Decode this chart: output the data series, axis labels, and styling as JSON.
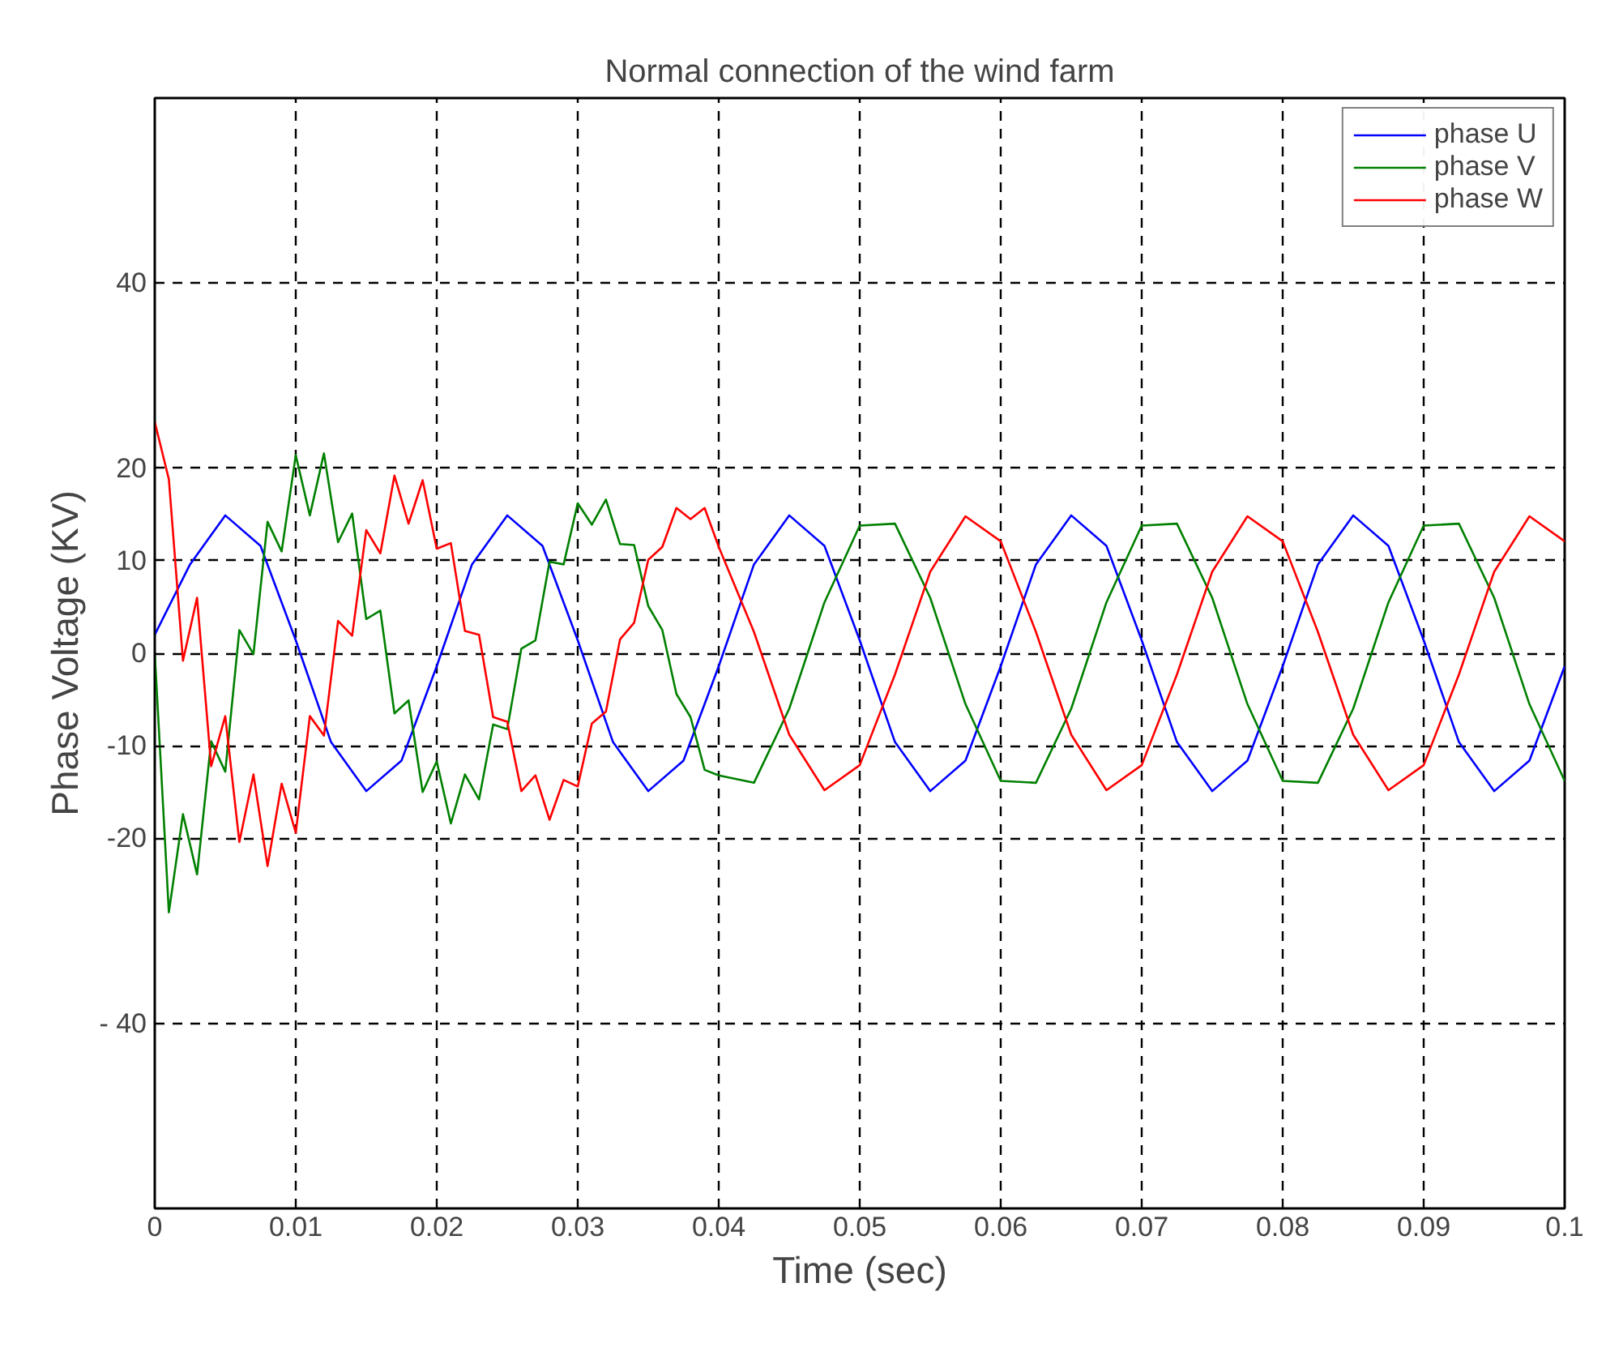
{
  "chart_data": {
    "type": "line",
    "title": "Normal connection of the wind farm",
    "xlabel": "Time (sec)",
    "ylabel": "Phase Voltage (KV)",
    "xlim": [
      0,
      0.1
    ],
    "ylim": [
      -60,
      60
    ],
    "xticks": [
      0,
      0.01,
      0.02,
      0.03,
      0.04,
      0.05,
      0.06,
      0.07,
      0.08,
      0.09,
      0.1
    ],
    "yticks": [
      {
        "value": -40,
        "label": "- 40"
      },
      -20,
      -10,
      0,
      10,
      20,
      40
    ],
    "grid": true,
    "legend": "top right",
    "marker": "none",
    "line_style": "solid",
    "series": [
      {
        "name": "phase U",
        "color": "#0000ff",
        "x": [
          0,
          0.0025,
          0.005,
          0.0075,
          0.01,
          0.0125,
          0.015,
          0.0175,
          0.02,
          0.0225,
          0.025,
          0.0275,
          0.03,
          0.0325,
          0.035,
          0.0375,
          0.04,
          0.0425,
          0.045,
          0.0475,
          0.05,
          0.0525,
          0.055,
          0.0575,
          0.06,
          0.0625,
          0.065,
          0.0675,
          0.07,
          0.0725,
          0.075,
          0.0775,
          0.08,
          0.0825,
          0.085,
          0.0875,
          0.09,
          0.0925,
          0.095,
          0.0975,
          0.1
        ],
        "values": [
          2,
          9.6,
          14.9,
          11.6,
          1.4,
          -9.6,
          -14.9,
          -11.6,
          -1.4,
          9.6,
          14.9,
          11.6,
          1.4,
          -9.6,
          -14.9,
          -11.6,
          -1.4,
          9.6,
          14.9,
          11.6,
          1.4,
          -9.6,
          -14.9,
          -11.6,
          -1.4,
          9.6,
          14.9,
          11.6,
          1.4,
          -9.6,
          -14.9,
          -11.6,
          -1.4,
          9.6,
          14.9,
          11.6,
          1.4,
          -9.6,
          -14.9,
          -11.6,
          -1.4
        ]
      },
      {
        "name": "phase V",
        "color": "#008000",
        "x": [
          0,
          0.001,
          0.002,
          0.003,
          0.004,
          0.005,
          0.006,
          0.007,
          0.008,
          0.009,
          0.01,
          0.011,
          0.012,
          0.013,
          0.014,
          0.015,
          0.016,
          0.017,
          0.018,
          0.019,
          0.02,
          0.021,
          0.022,
          0.023,
          0.024,
          0.025,
          0.026,
          0.027,
          0.028,
          0.029,
          0.03,
          0.031,
          0.032,
          0.033,
          0.034,
          0.035,
          0.036,
          0.037,
          0.038,
          0.039,
          0.04,
          0.0425,
          0.045,
          0.0475,
          0.05,
          0.0525,
          0.055,
          0.0575,
          0.06,
          0.0625,
          0.065,
          0.0675,
          0.07,
          0.0725,
          0.075,
          0.0775,
          0.08,
          0.0825,
          0.085,
          0.0875,
          0.09,
          0.0925,
          0.095,
          0.0975,
          0.1
        ],
        "values": [
          0,
          -28,
          -17.4,
          -23.9,
          -9.5,
          -12.8,
          2.5,
          -0.1,
          14.2,
          11,
          21.4,
          14.9,
          21.6,
          12,
          15.1,
          3.7,
          4.6,
          -6.5,
          -5.1,
          -15,
          -11.7,
          -18.4,
          -13.1,
          -15.8,
          -7.7,
          -8.2,
          0.5,
          1.4,
          9.9,
          9.6,
          16.2,
          13.9,
          16.6,
          11.8,
          11.7,
          5.1,
          2.5,
          -4.4,
          -6.9,
          -12.6,
          -13.2,
          -14,
          -6,
          5.5,
          13.8,
          14,
          6,
          -5.5,
          -13.8,
          -14,
          -6,
          5.5,
          13.8,
          14,
          6,
          -5.5,
          -13.8,
          -14,
          -6,
          5.5,
          13.8,
          14,
          6,
          -5.5,
          -13.8
        ]
      },
      {
        "name": "phase W",
        "color": "#ff0000",
        "x": [
          0,
          0.001,
          0.002,
          0.003,
          0.004,
          0.005,
          0.006,
          0.007,
          0.008,
          0.009,
          0.01,
          0.011,
          0.012,
          0.013,
          0.014,
          0.015,
          0.016,
          0.017,
          0.018,
          0.019,
          0.02,
          0.021,
          0.022,
          0.023,
          0.024,
          0.025,
          0.026,
          0.027,
          0.028,
          0.029,
          0.03,
          0.031,
          0.032,
          0.033,
          0.034,
          0.035,
          0.036,
          0.037,
          0.038,
          0.039,
          0.04,
          0.0425,
          0.045,
          0.0475,
          0.05,
          0.0525,
          0.055,
          0.0575,
          0.06,
          0.0625,
          0.065,
          0.0675,
          0.07,
          0.0725,
          0.075,
          0.0775,
          0.08,
          0.0825,
          0.085,
          0.0875,
          0.09,
          0.0925,
          0.095,
          0.0975,
          0.1
        ],
        "values": [
          25,
          18.8,
          -0.8,
          6,
          -12.2,
          -6.8,
          -20.4,
          -13.1,
          -23,
          -14.1,
          -19.4,
          -6.8,
          -8.9,
          3.5,
          1.9,
          13.3,
          10.8,
          19.2,
          14,
          18.7,
          11.3,
          11.9,
          2.4,
          2,
          -6.9,
          -7.4,
          -14.9,
          -13.2,
          -18,
          -13.7,
          -14.4,
          -7.6,
          -6.3,
          1.5,
          3.3,
          10.1,
          11.5,
          15.7,
          14.5,
          15.7,
          11.5,
          2.3,
          -8.8,
          -14.8,
          -12.1,
          -2.3,
          8.8,
          14.8,
          12.1,
          2.3,
          -8.8,
          -14.8,
          -12.1,
          -2.3,
          8.8,
          14.8,
          12.1,
          2.3,
          -8.8,
          -14.8,
          -12.1,
          -2.3,
          8.8,
          14.8,
          12.1
        ]
      }
    ]
  }
}
